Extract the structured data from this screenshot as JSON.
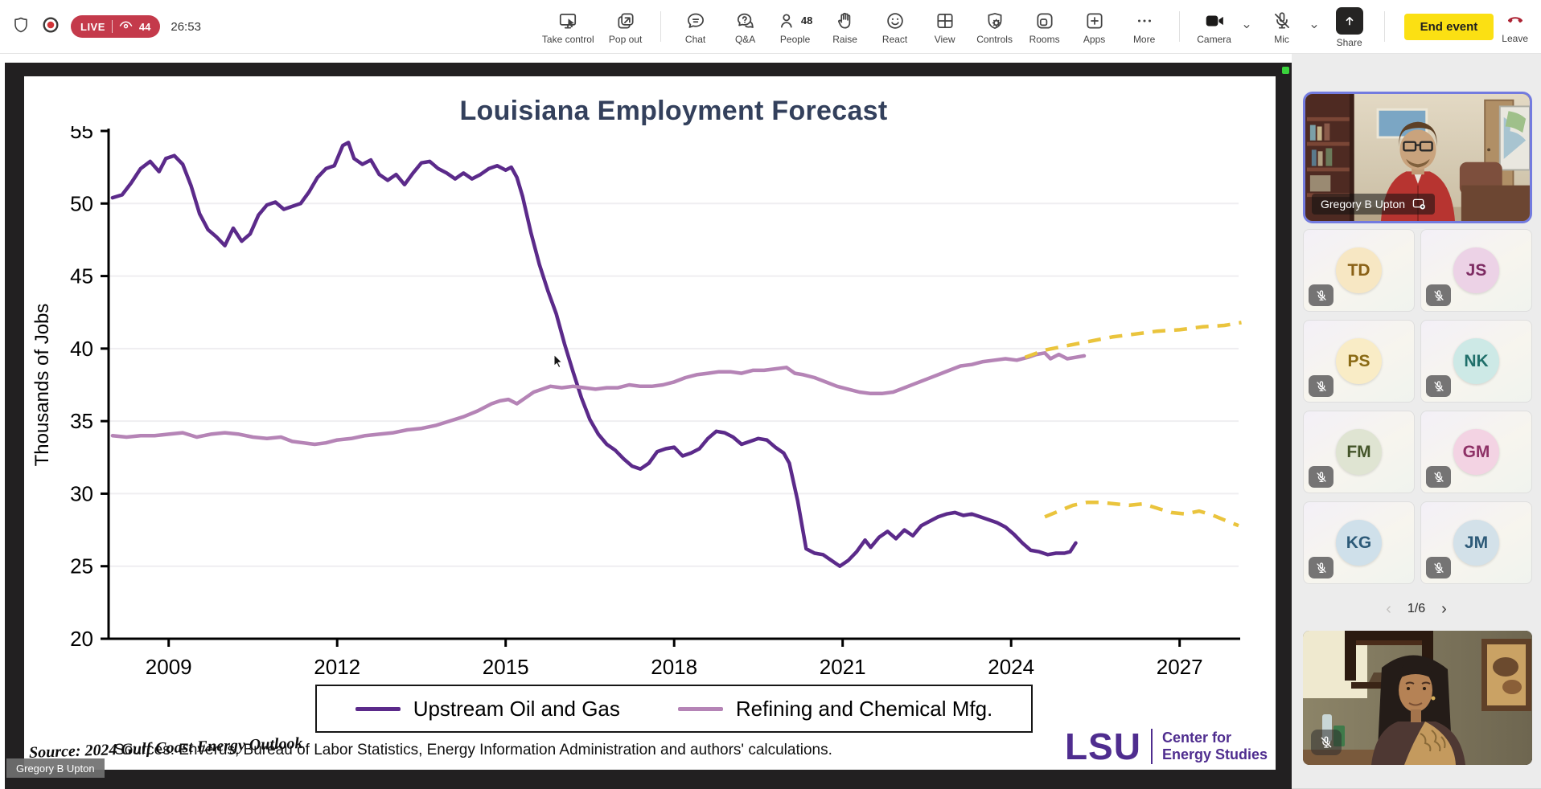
{
  "meeting": {
    "live_label": "LIVE",
    "viewer_count": "44",
    "elapsed": "26:53",
    "end_event_label": "End event",
    "leave_label": "Leave"
  },
  "toolbar": {
    "items": [
      {
        "id": "take-control",
        "label": "Take control"
      },
      {
        "id": "pop-out",
        "label": "Pop out",
        "divider_after": true
      },
      {
        "id": "chat",
        "label": "Chat"
      },
      {
        "id": "qa",
        "label": "Q&A"
      },
      {
        "id": "people",
        "label": "People",
        "badge": "48"
      },
      {
        "id": "raise",
        "label": "Raise"
      },
      {
        "id": "react",
        "label": "React"
      },
      {
        "id": "view",
        "label": "View"
      },
      {
        "id": "controls",
        "label": "Controls"
      },
      {
        "id": "rooms",
        "label": "Rooms"
      },
      {
        "id": "apps",
        "label": "Apps"
      },
      {
        "id": "more",
        "label": "More",
        "divider_after": true
      },
      {
        "id": "camera",
        "label": "Camera",
        "chevron": true
      },
      {
        "id": "mic-off",
        "label": "Mic",
        "chevron": true
      },
      {
        "id": "share",
        "label": "Share",
        "divider_after": true
      }
    ]
  },
  "chart_data": {
    "type": "line",
    "title": "Louisiana Employment Forecast",
    "xlabel": "",
    "ylabel": "Thousands of Jobs",
    "xlim": [
      2007.93,
      2028.05
    ],
    "ylim": [
      20,
      55
    ],
    "x_ticks": [
      2009,
      2012,
      2015,
      2018,
      2021,
      2024,
      2027
    ],
    "y_ticks": [
      20,
      25,
      30,
      35,
      40,
      45,
      50,
      55
    ],
    "grid": "horizontal-light",
    "legend": [
      "Upstream Oil and Gas",
      "Refining and Chemical Mfg."
    ],
    "legend_position": "bottom-boxed",
    "series": [
      {
        "name": "Upstream Oil and Gas",
        "color": "#5b2a8a",
        "dashed": false,
        "data": [
          [
            2008.0,
            50.4
          ],
          [
            2008.17,
            50.6
          ],
          [
            2008.33,
            51.4
          ],
          [
            2008.5,
            52.4
          ],
          [
            2008.67,
            52.9
          ],
          [
            2008.83,
            52.2
          ],
          [
            2008.95,
            53.1
          ],
          [
            2009.1,
            53.3
          ],
          [
            2009.25,
            52.7
          ],
          [
            2009.4,
            51.2
          ],
          [
            2009.55,
            49.3
          ],
          [
            2009.7,
            48.2
          ],
          [
            2009.85,
            47.7
          ],
          [
            2010.0,
            47.1
          ],
          [
            2010.15,
            48.3
          ],
          [
            2010.3,
            47.4
          ],
          [
            2010.45,
            47.9
          ],
          [
            2010.6,
            49.2
          ],
          [
            2010.75,
            49.9
          ],
          [
            2010.9,
            50.1
          ],
          [
            2011.05,
            49.6
          ],
          [
            2011.2,
            49.8
          ],
          [
            2011.35,
            50.0
          ],
          [
            2011.5,
            50.8
          ],
          [
            2011.65,
            51.8
          ],
          [
            2011.8,
            52.4
          ],
          [
            2011.95,
            52.6
          ],
          [
            2012.1,
            54.0
          ],
          [
            2012.2,
            54.2
          ],
          [
            2012.3,
            53.1
          ],
          [
            2012.45,
            52.7
          ],
          [
            2012.6,
            53.0
          ],
          [
            2012.75,
            52.0
          ],
          [
            2012.9,
            51.6
          ],
          [
            2013.05,
            52.0
          ],
          [
            2013.2,
            51.3
          ],
          [
            2013.35,
            52.1
          ],
          [
            2013.5,
            52.8
          ],
          [
            2013.65,
            52.9
          ],
          [
            2013.8,
            52.4
          ],
          [
            2013.95,
            52.1
          ],
          [
            2014.1,
            51.7
          ],
          [
            2014.25,
            52.1
          ],
          [
            2014.4,
            51.7
          ],
          [
            2014.55,
            52.0
          ],
          [
            2014.7,
            52.4
          ],
          [
            2014.85,
            52.6
          ],
          [
            2015.0,
            52.3
          ],
          [
            2015.1,
            52.5
          ],
          [
            2015.2,
            51.8
          ],
          [
            2015.3,
            50.5
          ],
          [
            2015.45,
            48.0
          ],
          [
            2015.6,
            45.8
          ],
          [
            2015.75,
            44.0
          ],
          [
            2015.9,
            42.4
          ],
          [
            2016.05,
            40.3
          ],
          [
            2016.2,
            38.4
          ],
          [
            2016.35,
            36.6
          ],
          [
            2016.5,
            35.1
          ],
          [
            2016.65,
            34.1
          ],
          [
            2016.8,
            33.4
          ],
          [
            2016.95,
            33.0
          ],
          [
            2017.1,
            32.4
          ],
          [
            2017.25,
            31.9
          ],
          [
            2017.4,
            31.7
          ],
          [
            2017.55,
            32.1
          ],
          [
            2017.7,
            32.9
          ],
          [
            2017.85,
            33.1
          ],
          [
            2018.0,
            33.2
          ],
          [
            2018.15,
            32.6
          ],
          [
            2018.3,
            32.8
          ],
          [
            2018.45,
            33.1
          ],
          [
            2018.6,
            33.8
          ],
          [
            2018.75,
            34.3
          ],
          [
            2018.9,
            34.2
          ],
          [
            2019.05,
            33.9
          ],
          [
            2019.2,
            33.4
          ],
          [
            2019.35,
            33.6
          ],
          [
            2019.5,
            33.8
          ],
          [
            2019.65,
            33.7
          ],
          [
            2019.8,
            33.2
          ],
          [
            2019.95,
            32.8
          ],
          [
            2020.05,
            32.1
          ],
          [
            2020.2,
            29.5
          ],
          [
            2020.35,
            26.2
          ],
          [
            2020.5,
            25.9
          ],
          [
            2020.65,
            25.8
          ],
          [
            2020.8,
            25.4
          ],
          [
            2020.95,
            25.0
          ],
          [
            2021.1,
            25.4
          ],
          [
            2021.25,
            26.0
          ],
          [
            2021.4,
            26.8
          ],
          [
            2021.5,
            26.3
          ],
          [
            2021.65,
            27.0
          ],
          [
            2021.8,
            27.4
          ],
          [
            2021.95,
            26.9
          ],
          [
            2022.1,
            27.5
          ],
          [
            2022.25,
            27.1
          ],
          [
            2022.4,
            27.8
          ],
          [
            2022.55,
            28.1
          ],
          [
            2022.7,
            28.4
          ],
          [
            2022.85,
            28.6
          ],
          [
            2023.0,
            28.7
          ],
          [
            2023.15,
            28.5
          ],
          [
            2023.3,
            28.6
          ],
          [
            2023.45,
            28.4
          ],
          [
            2023.6,
            28.2
          ],
          [
            2023.75,
            28.0
          ],
          [
            2023.9,
            27.7
          ],
          [
            2024.05,
            27.2
          ],
          [
            2024.2,
            26.6
          ],
          [
            2024.35,
            26.1
          ],
          [
            2024.5,
            26.0
          ],
          [
            2024.65,
            25.8
          ],
          [
            2024.8,
            25.9
          ],
          [
            2024.95,
            25.9
          ],
          [
            2025.05,
            26.0
          ],
          [
            2025.15,
            26.6
          ]
        ]
      },
      {
        "name": "Refining and Chemical Mfg.",
        "color": "#b584b6",
        "dashed": false,
        "data": [
          [
            2008.0,
            34.0
          ],
          [
            2008.25,
            33.9
          ],
          [
            2008.5,
            34.0
          ],
          [
            2008.75,
            34.0
          ],
          [
            2009.0,
            34.1
          ],
          [
            2009.25,
            34.2
          ],
          [
            2009.5,
            33.9
          ],
          [
            2009.75,
            34.1
          ],
          [
            2010.0,
            34.2
          ],
          [
            2010.25,
            34.1
          ],
          [
            2010.5,
            33.9
          ],
          [
            2010.75,
            33.8
          ],
          [
            2011.0,
            33.9
          ],
          [
            2011.2,
            33.6
          ],
          [
            2011.4,
            33.5
          ],
          [
            2011.6,
            33.4
          ],
          [
            2011.8,
            33.5
          ],
          [
            2012.0,
            33.7
          ],
          [
            2012.25,
            33.8
          ],
          [
            2012.5,
            34.0
          ],
          [
            2012.75,
            34.1
          ],
          [
            2013.0,
            34.2
          ],
          [
            2013.25,
            34.4
          ],
          [
            2013.5,
            34.5
          ],
          [
            2013.75,
            34.7
          ],
          [
            2014.0,
            35.0
          ],
          [
            2014.25,
            35.3
          ],
          [
            2014.5,
            35.7
          ],
          [
            2014.75,
            36.2
          ],
          [
            2014.9,
            36.4
          ],
          [
            2015.05,
            36.5
          ],
          [
            2015.2,
            36.2
          ],
          [
            2015.35,
            36.6
          ],
          [
            2015.5,
            37.0
          ],
          [
            2015.65,
            37.2
          ],
          [
            2015.8,
            37.4
          ],
          [
            2016.0,
            37.3
          ],
          [
            2016.2,
            37.4
          ],
          [
            2016.4,
            37.3
          ],
          [
            2016.6,
            37.2
          ],
          [
            2016.8,
            37.3
          ],
          [
            2017.0,
            37.3
          ],
          [
            2017.2,
            37.5
          ],
          [
            2017.4,
            37.4
          ],
          [
            2017.6,
            37.4
          ],
          [
            2017.8,
            37.5
          ],
          [
            2018.0,
            37.7
          ],
          [
            2018.2,
            38.0
          ],
          [
            2018.4,
            38.2
          ],
          [
            2018.6,
            38.3
          ],
          [
            2018.8,
            38.4
          ],
          [
            2019.0,
            38.4
          ],
          [
            2019.2,
            38.3
          ],
          [
            2019.4,
            38.5
          ],
          [
            2019.6,
            38.5
          ],
          [
            2019.8,
            38.6
          ],
          [
            2020.0,
            38.7
          ],
          [
            2020.15,
            38.3
          ],
          [
            2020.3,
            38.2
          ],
          [
            2020.5,
            38.0
          ],
          [
            2020.7,
            37.7
          ],
          [
            2020.9,
            37.4
          ],
          [
            2021.1,
            37.2
          ],
          [
            2021.3,
            37.0
          ],
          [
            2021.5,
            36.9
          ],
          [
            2021.7,
            36.9
          ],
          [
            2021.9,
            37.0
          ],
          [
            2022.1,
            37.3
          ],
          [
            2022.3,
            37.6
          ],
          [
            2022.5,
            37.9
          ],
          [
            2022.7,
            38.2
          ],
          [
            2022.9,
            38.5
          ],
          [
            2023.1,
            38.8
          ],
          [
            2023.3,
            38.9
          ],
          [
            2023.5,
            39.1
          ],
          [
            2023.7,
            39.2
          ],
          [
            2023.9,
            39.3
          ],
          [
            2024.1,
            39.2
          ],
          [
            2024.3,
            39.4
          ],
          [
            2024.45,
            39.6
          ],
          [
            2024.6,
            39.7
          ],
          [
            2024.7,
            39.3
          ],
          [
            2024.85,
            39.6
          ],
          [
            2025.0,
            39.3
          ],
          [
            2025.15,
            39.4
          ],
          [
            2025.3,
            39.5
          ]
        ]
      },
      {
        "name": "",
        "color": "#eac43d",
        "dashed": true,
        "data": [
          [
            2024.6,
            28.4
          ],
          [
            2024.85,
            28.8
          ],
          [
            2025.1,
            29.2
          ],
          [
            2025.35,
            29.4
          ],
          [
            2025.6,
            29.4
          ],
          [
            2025.85,
            29.3
          ],
          [
            2026.1,
            29.2
          ],
          [
            2026.35,
            29.3
          ],
          [
            2026.6,
            29.0
          ],
          [
            2026.85,
            28.7
          ],
          [
            2027.1,
            28.6
          ],
          [
            2027.35,
            28.8
          ],
          [
            2027.6,
            28.5
          ],
          [
            2027.85,
            28.1
          ],
          [
            2028.05,
            27.8
          ]
        ]
      },
      {
        "name": "",
        "color": "#eac43d",
        "dashed": true,
        "data": [
          [
            2024.25,
            39.4
          ],
          [
            2024.6,
            39.9
          ],
          [
            2025.0,
            40.2
          ],
          [
            2025.4,
            40.5
          ],
          [
            2025.8,
            40.8
          ],
          [
            2026.2,
            41.0
          ],
          [
            2026.6,
            41.2
          ],
          [
            2027.0,
            41.3
          ],
          [
            2027.4,
            41.5
          ],
          [
            2027.8,
            41.6
          ],
          [
            2028.1,
            41.8
          ]
        ]
      }
    ]
  },
  "slide": {
    "sources_line": "Sources: Enverus, Bureau of Labor Statistics, Energy Information Administration and authors' calculations.",
    "logo": {
      "mark": "LSU",
      "line1": "Center for",
      "line2": "Energy Studies"
    }
  },
  "overlays": {
    "presenter_name": "Gregory B Upton",
    "source_watermark": "Source: 2024 Gulf Coast Energy Outlook"
  },
  "panel": {
    "spotlight_name": "Gregory B Upton",
    "pagination": "1/6",
    "prev_glyph": "‹",
    "next_glyph": "›",
    "participants": [
      {
        "initials": "TD",
        "avatar_bg": "#f7e7c3",
        "avatar_fg": "#8a6116"
      },
      {
        "initials": "JS",
        "avatar_bg": "#ecd2e6",
        "avatar_fg": "#7d2b62"
      },
      {
        "initials": "PS",
        "avatar_bg": "#f9ecc6",
        "avatar_fg": "#8a6a14"
      },
      {
        "initials": "NK",
        "avatar_bg": "#cde9e6",
        "avatar_fg": "#1f6f6a"
      },
      {
        "initials": "FM",
        "avatar_bg": "#dfe4d2",
        "avatar_fg": "#44552a"
      },
      {
        "initials": "GM",
        "avatar_bg": "#f3d3e3",
        "avatar_fg": "#8e3166"
      },
      {
        "initials": "KG",
        "avatar_bg": "#cfe0ea",
        "avatar_fg": "#2d5a78"
      },
      {
        "initials": "JM",
        "avatar_bg": "#d3e1e9",
        "avatar_fg": "#2d5a78"
      }
    ]
  }
}
